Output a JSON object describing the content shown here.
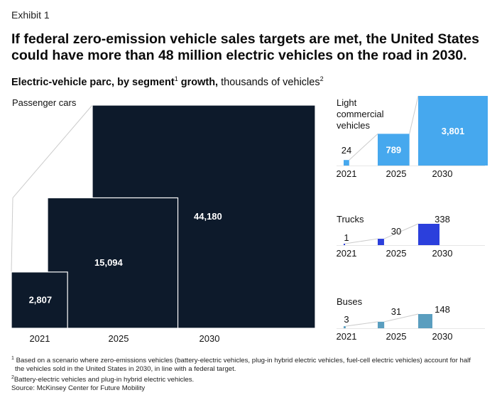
{
  "exhibit_label": "Exhibit 1",
  "headline": "If federal zero-emission vehicle sales targets are met, the United States could have more than 48 million electric vehicles on the road in 2030.",
  "subtitle": {
    "bold_part": "Electric-vehicle parc, by segment",
    "fn1": "1",
    "bold_part2": " growth,",
    "normal_part": " thousands of vehicles",
    "fn2": "2"
  },
  "colors": {
    "passenger": "#0d1a2b",
    "lcv": "#46a8ee",
    "trucks": "#2b3fdc",
    "buses": "#5a9ebf",
    "connector": "#cccccc"
  },
  "chart_data": [
    {
      "type": "bar",
      "segment": "Passenger cars",
      "categories": [
        "2021",
        "2025",
        "2030"
      ],
      "values": [
        2807,
        15094,
        44180
      ],
      "value_labels": [
        "2,807",
        "15,094",
        "44,180"
      ]
    },
    {
      "type": "bar",
      "segment": "Light commercial vehicles",
      "segment_lines": [
        "Light",
        "commercial",
        "vehicles"
      ],
      "categories": [
        "2021",
        "2025",
        "2030"
      ],
      "values": [
        24,
        789,
        3801
      ],
      "value_labels": [
        "24",
        "789",
        "3,801"
      ]
    },
    {
      "type": "bar",
      "segment": "Trucks",
      "categories": [
        "2021",
        "2025",
        "2030"
      ],
      "values": [
        1,
        30,
        338
      ],
      "value_labels": [
        "1",
        "30",
        "338"
      ]
    },
    {
      "type": "bar",
      "segment": "Buses",
      "categories": [
        "2021",
        "2025",
        "2030"
      ],
      "values": [
        3,
        31,
        148
      ],
      "value_labels": [
        "3",
        "31",
        "148"
      ]
    }
  ],
  "footnotes": {
    "fn1_mark": "1",
    "fn1_line1": " Based on a scenario where zero-emissions vehicles (battery-electric vehicles, plug-in hybrid electric vehicles, fuel-cell electric vehicles) account for half",
    "fn1_line2": "the vehicles sold in the United States in 2030, in line with a federal target.",
    "fn2_mark": "2",
    "fn2_text": "Battery-electric vehicles and plug-in hybrid electric vehicles.",
    "source": "Source: McKinsey Center for Future Mobility"
  }
}
